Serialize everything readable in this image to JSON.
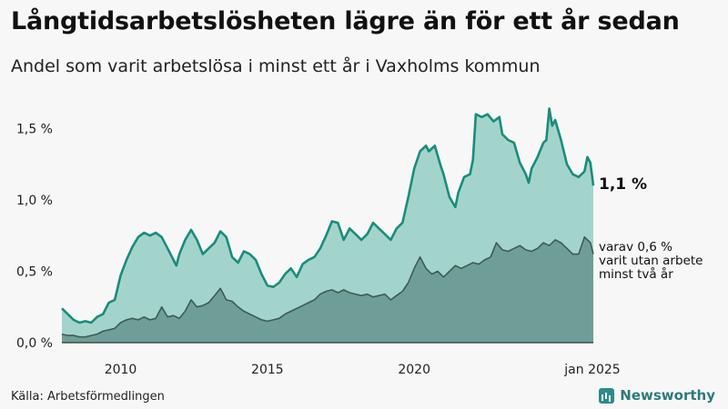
{
  "title": "Långtidsarbetslösheten lägre än för ett år sedan",
  "subtitle": "Andel som varit arbetslösa i minst ett år i Vaxholms kommun",
  "source": "Källa: Arbetsförmedlingen",
  "brand": {
    "name": "Newsworthy",
    "icon": "newsworthy-logo-icon"
  },
  "colors": {
    "total_line": "#1a8c7c",
    "total_fill": "#a3d4cc",
    "long_line": "#3f5a55",
    "long_fill": "#6e9e97",
    "background": "#f7f7f7"
  },
  "chart_data": {
    "type": "area",
    "title": "Långtidsarbetslösheten lägre än för ett år sedan",
    "subtitle": "Andel som varit arbetslösa i minst ett år i Vaxholms kommun",
    "xlabel": "",
    "ylabel": "",
    "ylim": [
      0,
      1.7
    ],
    "x_range": [
      2008.0,
      2025.0
    ],
    "y_ticks": [
      {
        "value": 0.0,
        "label": "0,0 %"
      },
      {
        "value": 0.5,
        "label": "0,5 %"
      },
      {
        "value": 1.0,
        "label": "1,0 %"
      },
      {
        "value": 1.5,
        "label": "1,5 %"
      }
    ],
    "x_ticks": [
      {
        "value": 2010,
        "label": "2010"
      },
      {
        "value": 2015,
        "label": "2015"
      },
      {
        "value": 2020,
        "label": "2020"
      },
      {
        "value": 2025,
        "label": "jan 2025"
      }
    ],
    "grid": false,
    "series": [
      {
        "key": "total",
        "points": [
          [
            2008.0,
            0.24
          ],
          [
            2008.2,
            0.2
          ],
          [
            2008.4,
            0.16
          ],
          [
            2008.6,
            0.14
          ],
          [
            2008.8,
            0.15
          ],
          [
            2009.0,
            0.14
          ],
          [
            2009.2,
            0.18
          ],
          [
            2009.4,
            0.2
          ],
          [
            2009.6,
            0.28
          ],
          [
            2009.8,
            0.3
          ],
          [
            2010.0,
            0.47
          ],
          [
            2010.2,
            0.58
          ],
          [
            2010.4,
            0.67
          ],
          [
            2010.6,
            0.74
          ],
          [
            2010.8,
            0.77
          ],
          [
            2011.0,
            0.75
          ],
          [
            2011.2,
            0.77
          ],
          [
            2011.4,
            0.74
          ],
          [
            2011.6,
            0.66
          ],
          [
            2011.8,
            0.58
          ],
          [
            2011.9,
            0.54
          ],
          [
            2012.0,
            0.62
          ],
          [
            2012.2,
            0.72
          ],
          [
            2012.4,
            0.79
          ],
          [
            2012.6,
            0.72
          ],
          [
            2012.8,
            0.62
          ],
          [
            2013.0,
            0.66
          ],
          [
            2013.2,
            0.7
          ],
          [
            2013.4,
            0.78
          ],
          [
            2013.6,
            0.74
          ],
          [
            2013.8,
            0.6
          ],
          [
            2014.0,
            0.56
          ],
          [
            2014.2,
            0.64
          ],
          [
            2014.4,
            0.62
          ],
          [
            2014.6,
            0.58
          ],
          [
            2014.8,
            0.48
          ],
          [
            2015.0,
            0.4
          ],
          [
            2015.2,
            0.39
          ],
          [
            2015.4,
            0.42
          ],
          [
            2015.6,
            0.48
          ],
          [
            2015.8,
            0.52
          ],
          [
            2016.0,
            0.46
          ],
          [
            2016.2,
            0.55
          ],
          [
            2016.4,
            0.58
          ],
          [
            2016.6,
            0.6
          ],
          [
            2016.8,
            0.66
          ],
          [
            2017.0,
            0.75
          ],
          [
            2017.2,
            0.85
          ],
          [
            2017.4,
            0.84
          ],
          [
            2017.6,
            0.72
          ],
          [
            2017.8,
            0.8
          ],
          [
            2018.0,
            0.76
          ],
          [
            2018.2,
            0.72
          ],
          [
            2018.4,
            0.76
          ],
          [
            2018.6,
            0.84
          ],
          [
            2018.8,
            0.8
          ],
          [
            2019.0,
            0.76
          ],
          [
            2019.2,
            0.72
          ],
          [
            2019.4,
            0.8
          ],
          [
            2019.6,
            0.84
          ],
          [
            2019.8,
            1.02
          ],
          [
            2020.0,
            1.22
          ],
          [
            2020.2,
            1.34
          ],
          [
            2020.4,
            1.38
          ],
          [
            2020.5,
            1.34
          ],
          [
            2020.7,
            1.38
          ],
          [
            2020.9,
            1.24
          ],
          [
            2021.0,
            1.18
          ],
          [
            2021.2,
            1.02
          ],
          [
            2021.4,
            0.95
          ],
          [
            2021.5,
            1.05
          ],
          [
            2021.7,
            1.16
          ],
          [
            2021.9,
            1.18
          ],
          [
            2022.0,
            1.28
          ],
          [
            2022.1,
            1.6
          ],
          [
            2022.3,
            1.58
          ],
          [
            2022.5,
            1.6
          ],
          [
            2022.7,
            1.55
          ],
          [
            2022.9,
            1.58
          ],
          [
            2023.0,
            1.46
          ],
          [
            2023.2,
            1.42
          ],
          [
            2023.4,
            1.4
          ],
          [
            2023.6,
            1.26
          ],
          [
            2023.8,
            1.18
          ],
          [
            2023.9,
            1.12
          ],
          [
            2024.0,
            1.22
          ],
          [
            2024.2,
            1.3
          ],
          [
            2024.4,
            1.4
          ],
          [
            2024.5,
            1.42
          ],
          [
            2024.6,
            1.64
          ],
          [
            2024.7,
            1.52
          ],
          [
            2024.8,
            1.56
          ],
          [
            2025.0,
            1.42
          ],
          [
            2025.2,
            1.25
          ],
          [
            2025.4,
            1.18
          ],
          [
            2025.6,
            1.16
          ],
          [
            2025.8,
            1.2
          ],
          [
            2025.9,
            1.3
          ],
          [
            2026.0,
            1.26
          ],
          [
            2026.1,
            1.1
          ]
        ]
      },
      {
        "key": "long",
        "points": [
          [
            2008.0,
            0.06
          ],
          [
            2008.2,
            0.05
          ],
          [
            2008.4,
            0.05
          ],
          [
            2008.6,
            0.04
          ],
          [
            2008.8,
            0.04
          ],
          [
            2009.0,
            0.05
          ],
          [
            2009.2,
            0.06
          ],
          [
            2009.4,
            0.08
          ],
          [
            2009.6,
            0.09
          ],
          [
            2009.8,
            0.1
          ],
          [
            2010.0,
            0.14
          ],
          [
            2010.2,
            0.16
          ],
          [
            2010.4,
            0.17
          ],
          [
            2010.6,
            0.16
          ],
          [
            2010.8,
            0.18
          ],
          [
            2011.0,
            0.16
          ],
          [
            2011.2,
            0.17
          ],
          [
            2011.4,
            0.25
          ],
          [
            2011.6,
            0.18
          ],
          [
            2011.8,
            0.19
          ],
          [
            2012.0,
            0.17
          ],
          [
            2012.2,
            0.22
          ],
          [
            2012.4,
            0.3
          ],
          [
            2012.6,
            0.25
          ],
          [
            2012.8,
            0.26
          ],
          [
            2013.0,
            0.28
          ],
          [
            2013.2,
            0.33
          ],
          [
            2013.4,
            0.38
          ],
          [
            2013.6,
            0.3
          ],
          [
            2013.8,
            0.29
          ],
          [
            2014.0,
            0.25
          ],
          [
            2014.2,
            0.22
          ],
          [
            2014.4,
            0.2
          ],
          [
            2014.6,
            0.18
          ],
          [
            2014.8,
            0.16
          ],
          [
            2015.0,
            0.15
          ],
          [
            2015.2,
            0.16
          ],
          [
            2015.4,
            0.17
          ],
          [
            2015.6,
            0.2
          ],
          [
            2015.8,
            0.22
          ],
          [
            2016.0,
            0.24
          ],
          [
            2016.2,
            0.26
          ],
          [
            2016.4,
            0.28
          ],
          [
            2016.6,
            0.3
          ],
          [
            2016.8,
            0.34
          ],
          [
            2017.0,
            0.36
          ],
          [
            2017.2,
            0.37
          ],
          [
            2017.4,
            0.35
          ],
          [
            2017.6,
            0.37
          ],
          [
            2017.8,
            0.35
          ],
          [
            2018.0,
            0.34
          ],
          [
            2018.2,
            0.33
          ],
          [
            2018.4,
            0.34
          ],
          [
            2018.6,
            0.32
          ],
          [
            2018.8,
            0.33
          ],
          [
            2019.0,
            0.34
          ],
          [
            2019.2,
            0.3
          ],
          [
            2019.4,
            0.33
          ],
          [
            2019.6,
            0.36
          ],
          [
            2019.8,
            0.42
          ],
          [
            2020.0,
            0.52
          ],
          [
            2020.2,
            0.6
          ],
          [
            2020.4,
            0.52
          ],
          [
            2020.6,
            0.48
          ],
          [
            2020.8,
            0.5
          ],
          [
            2021.0,
            0.46
          ],
          [
            2021.2,
            0.5
          ],
          [
            2021.4,
            0.54
          ],
          [
            2021.6,
            0.52
          ],
          [
            2021.8,
            0.54
          ],
          [
            2022.0,
            0.56
          ],
          [
            2022.2,
            0.55
          ],
          [
            2022.4,
            0.58
          ],
          [
            2022.6,
            0.6
          ],
          [
            2022.8,
            0.7
          ],
          [
            2023.0,
            0.65
          ],
          [
            2023.2,
            0.64
          ],
          [
            2023.4,
            0.66
          ],
          [
            2023.6,
            0.68
          ],
          [
            2023.8,
            0.65
          ],
          [
            2024.0,
            0.64
          ],
          [
            2024.2,
            0.66
          ],
          [
            2024.4,
            0.7
          ],
          [
            2024.6,
            0.68
          ],
          [
            2024.8,
            0.72
          ],
          [
            2025.0,
            0.7
          ],
          [
            2025.2,
            0.66
          ],
          [
            2025.4,
            0.62
          ],
          [
            2025.6,
            0.62
          ],
          [
            2025.8,
            0.74
          ],
          [
            2026.0,
            0.7
          ],
          [
            2026.1,
            0.62
          ]
        ]
      }
    ],
    "annotations": {
      "total_value": "1,1 %",
      "long_lines": [
        "varav 0,6 %",
        "varit utan arbete",
        "minst två år"
      ]
    }
  }
}
